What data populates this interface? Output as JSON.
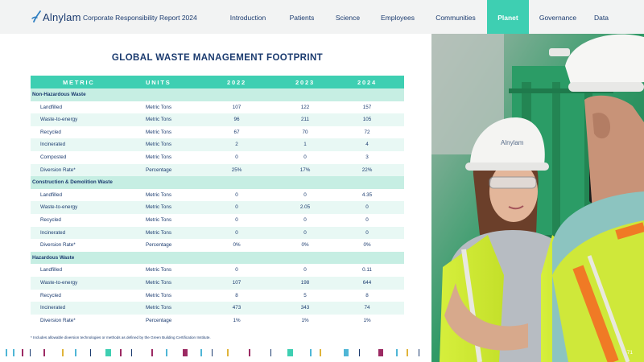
{
  "header": {
    "logo_text": "Alnylam",
    "report_title": "Corporate Responsibility Report 2024",
    "nav": [
      {
        "label": "Introduction",
        "active": false
      },
      {
        "label": "Patients",
        "active": false
      },
      {
        "label": "Science",
        "active": false
      },
      {
        "label": "Employees",
        "active": false
      },
      {
        "label": "Communities",
        "active": false
      },
      {
        "label": "Planet",
        "active": true
      },
      {
        "label": "Governance",
        "active": false
      },
      {
        "label": "Data",
        "active": false
      }
    ]
  },
  "table": {
    "title": "GLOBAL WASTE MANAGEMENT FOOTPRINT",
    "headers": {
      "metric": "METRIC",
      "units": "UNITS",
      "y2022": "2022",
      "y2023": "2023",
      "y2024": "2024"
    },
    "sections": [
      {
        "name": "Non-Hazardous Waste",
        "rows": [
          {
            "metric": "Landfilled",
            "units": "Metric Tons",
            "y2022": "107",
            "y2023": "122",
            "y2024": "157"
          },
          {
            "metric": "Waste-to-energy",
            "units": "Metric Tons",
            "y2022": "96",
            "y2023": "211",
            "y2024": "105"
          },
          {
            "metric": "Recycled",
            "units": "Metric Tons",
            "y2022": "67",
            "y2023": "70",
            "y2024": "72"
          },
          {
            "metric": "Incinerated",
            "units": "Metric Tons",
            "y2022": "2",
            "y2023": "1",
            "y2024": "4"
          },
          {
            "metric": "Composted",
            "units": "Metric Tons",
            "y2022": "0",
            "y2023": "0",
            "y2024": "3"
          },
          {
            "metric": "Diversion Rate*",
            "units": "Percentage",
            "y2022": "25%",
            "y2023": "17%",
            "y2024": "22%"
          }
        ]
      },
      {
        "name": "Construction & Demolition Waste",
        "rows": [
          {
            "metric": "Landfilled",
            "units": "Metric Tons",
            "y2022": "0",
            "y2023": "0",
            "y2024": "4.35"
          },
          {
            "metric": "Waste-to-energy",
            "units": "Metric Tons",
            "y2022": "0",
            "y2023": "2.05",
            "y2024": "0"
          },
          {
            "metric": "Recycled",
            "units": "Metric Tons",
            "y2022": "0",
            "y2023": "0",
            "y2024": "0"
          },
          {
            "metric": "Incinerated",
            "units": "Metric Tons",
            "y2022": "0",
            "y2023": "0",
            "y2024": "0"
          },
          {
            "metric": "Diversion Rate*",
            "units": "Percentage",
            "y2022": "0%",
            "y2023": "0%",
            "y2024": "0%"
          }
        ]
      },
      {
        "name": "Hazardous Waste",
        "rows": [
          {
            "metric": "Landfilled",
            "units": "Metric Tons",
            "y2022": "0",
            "y2023": "0",
            "y2024": "0.11"
          },
          {
            "metric": "Waste-to-energy",
            "units": "Metric Tons",
            "y2022": "107",
            "y2023": "198",
            "y2024": "644"
          },
          {
            "metric": "Recycled",
            "units": "Metric Tons",
            "y2022": "8",
            "y2023": "5",
            "y2024": "8"
          },
          {
            "metric": "Incinerated",
            "units": "Metric Tons",
            "y2022": "473",
            "y2023": "343",
            "y2024": "74"
          },
          {
            "metric": "Diversion Rate*",
            "units": "Percentage",
            "y2022": "1%",
            "y2023": "1%",
            "y2024": "1%"
          }
        ]
      }
    ]
  },
  "footnote": "* Includes allowable diversion technologies or methods as defined by the Green Building Certification Institute.",
  "photo": {
    "helmet_logo": "Alnylam"
  },
  "page_number": "71",
  "colors": {
    "accent": "#3ecfb2",
    "navy": "#1b3b6f",
    "row_alt": "#e8f8f4",
    "section_row": "#c6eee3",
    "magenta": "#9c2a63",
    "sky": "#4fb6d6"
  }
}
